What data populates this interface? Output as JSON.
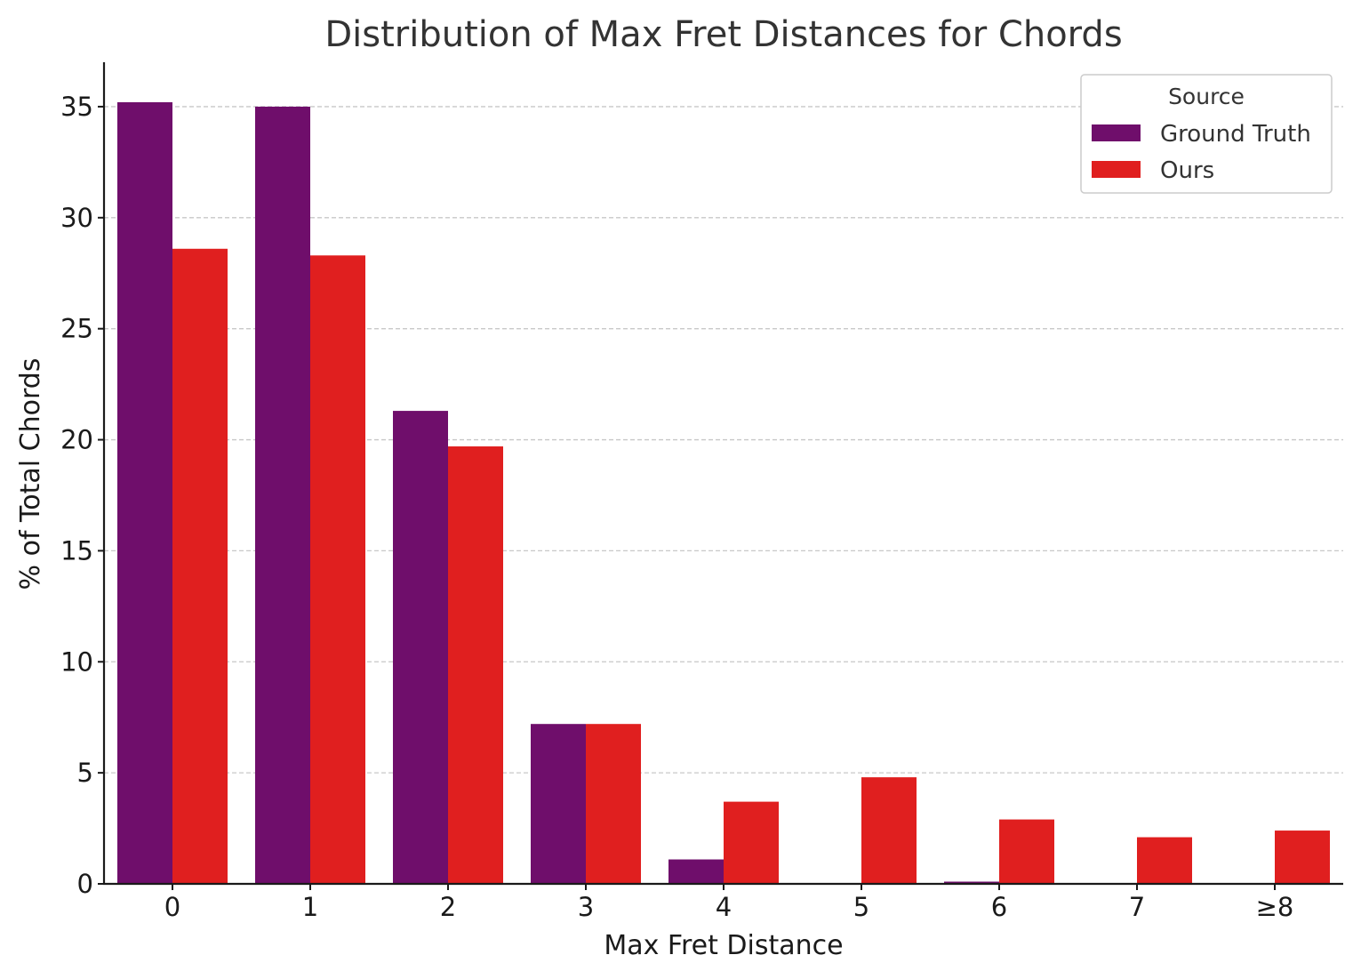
{
  "chart_data": {
    "type": "bar",
    "title": "Distribution of Max Fret Distances for Chords",
    "xlabel": "Max Fret Distance",
    "ylabel": "% of Total Chords",
    "categories": [
      "0",
      "1",
      "2",
      "3",
      "4",
      "5",
      "6",
      "7",
      "≥8"
    ],
    "series": [
      {
        "name": "Ground Truth",
        "color": "#6f0e6b",
        "values": [
          35.2,
          35.0,
          21.3,
          7.2,
          1.1,
          0.0,
          0.1,
          0.0,
          0.0
        ]
      },
      {
        "name": "Ours",
        "color": "#e01f1f",
        "values": [
          28.6,
          28.3,
          19.7,
          7.2,
          3.7,
          4.8,
          2.9,
          2.1,
          2.4
        ]
      }
    ],
    "ylim": [
      0,
      37
    ],
    "yticks": [
      0,
      5,
      10,
      15,
      20,
      25,
      30,
      35
    ],
    "grid": true,
    "legend": {
      "title": "Source",
      "position": "top-right"
    }
  }
}
